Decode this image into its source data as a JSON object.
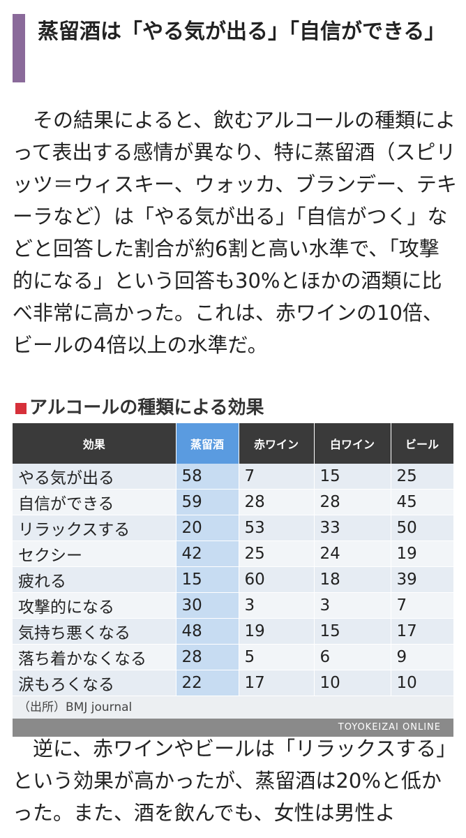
{
  "heading": "蒸留酒は「やる気が出る」「自信ができる」",
  "paragraphs": [
    "その結果によると、飲むアルコールの種類によって表出する感情が異なり、特に蒸留酒（スピリッツ＝ウィスキー、ウォッカ、ブランデー、テキーラなど）は「やる気が出る」「自信がつく」などと回答した割合が約6割と高い水準で、「攻撃的になる」という回答も30%とほかの酒類に比べ非常に高かった。これは、赤ワインの10倍、ビールの4倍以上の水準だ。",
    "逆に、赤ワインやビールは「リラックスする」という効果が高かったが、蒸留酒は20%と低かった。また、酒を飲んでも、女性は男性よ"
  ],
  "figure": {
    "title": "アルコールの種類による効果",
    "table": {
      "header": [
        "効果",
        "蒸留酒",
        "赤ワイン",
        "白ワイン",
        "ビール"
      ],
      "rows": [
        [
          "やる気が出る",
          58,
          7,
          15,
          25
        ],
        [
          "自信ができる",
          59,
          28,
          28,
          45
        ],
        [
          "リラックスする",
          20,
          53,
          33,
          50
        ],
        [
          "セクシー",
          42,
          25,
          24,
          19
        ],
        [
          "疲れる",
          15,
          60,
          18,
          39
        ],
        [
          "攻撃的になる",
          30,
          3,
          3,
          7
        ],
        [
          "気持ち悪くなる",
          48,
          19,
          15,
          17
        ],
        [
          "落ち着かなくなる",
          28,
          5,
          6,
          9
        ],
        [
          "涙もろくなる",
          22,
          17,
          10,
          10
        ]
      ]
    },
    "source": "（出所）BMJ journal",
    "credit": "TOYOKEIZAI ONLINE"
  }
}
